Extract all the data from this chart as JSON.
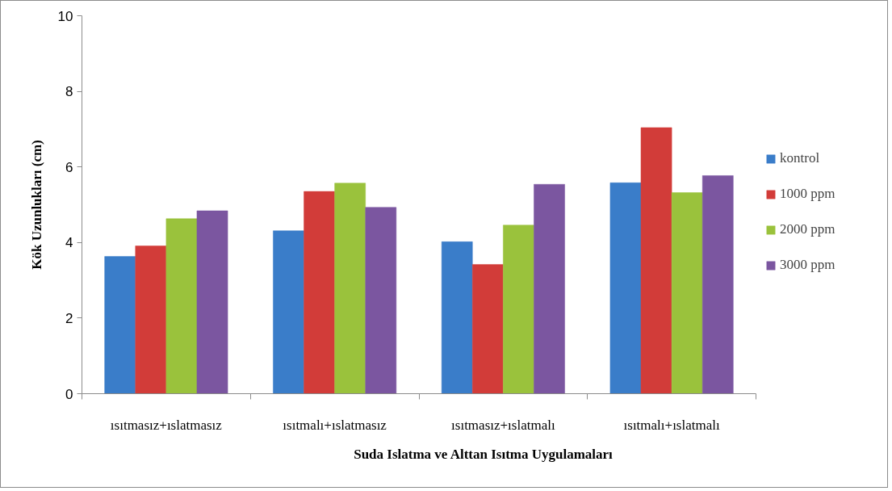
{
  "chart_data": {
    "type": "bar",
    "ylabel": "Kök Uzunlukları (cm)",
    "xlabel": "Suda Islatma ve Alttan Isıtma Uygulamaları",
    "categories": [
      "ısıtmasız+ıslatmasız",
      "ısıtmalı+ıslatmasız",
      "ısıtmasız+ıslatmalı",
      "ısıtmalı+ıslatmalı"
    ],
    "series": [
      {
        "name": "kontrol",
        "color": "#3a7dc9",
        "values": [
          3.63,
          4.31,
          4.02,
          5.58
        ]
      },
      {
        "name": "1000 ppm",
        "color": "#d23c39",
        "values": [
          3.91,
          5.35,
          3.42,
          7.04
        ]
      },
      {
        "name": "2000 ppm",
        "color": "#9ac23c",
        "values": [
          4.63,
          5.57,
          4.46,
          5.32
        ]
      },
      {
        "name": "3000 ppm",
        "color": "#7b56a0",
        "values": [
          4.84,
          4.93,
          5.54,
          5.77
        ]
      }
    ],
    "ylim": [
      0,
      10
    ],
    "yticks": [
      0,
      2,
      4,
      6,
      8,
      10
    ],
    "grid": false,
    "legend": "right"
  }
}
